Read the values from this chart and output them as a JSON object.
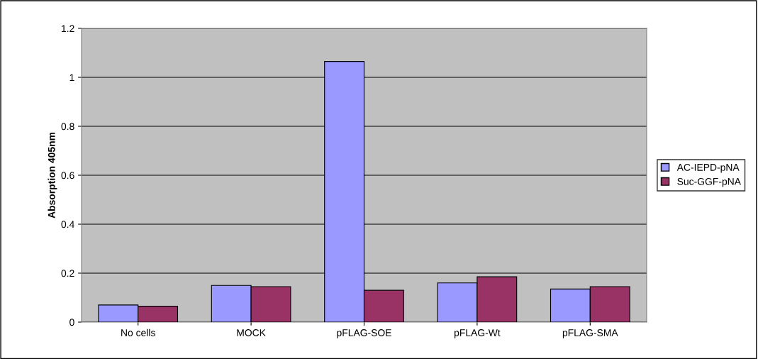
{
  "chart_data": {
    "type": "bar",
    "ylabel": "Absorption 405nm",
    "categories": [
      "No cells",
      "MOCK",
      "pFLAG-SOE",
      "pFLAG-Wt",
      "pFLAG-SMA"
    ],
    "series": [
      {
        "name": "AC-IEPD-pNA",
        "color": "#9999ff",
        "values": [
          0.07,
          0.15,
          1.065,
          0.16,
          0.135
        ]
      },
      {
        "name": "Suc-GGF-pNA",
        "color": "#993366",
        "values": [
          0.065,
          0.145,
          0.13,
          0.185,
          0.145
        ]
      }
    ],
    "ylim": [
      0,
      1.2
    ],
    "yticks": [
      0,
      0.2,
      0.4,
      0.6,
      0.8,
      1,
      1.2
    ],
    "grid": "y",
    "legend": "right"
  }
}
